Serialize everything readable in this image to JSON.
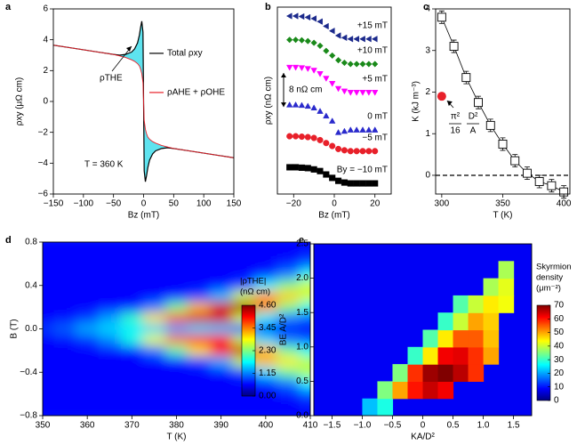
{
  "chart_data": [
    {
      "panel": "a",
      "type": "line",
      "x": [
        -150,
        -125,
        -100,
        -75,
        -50,
        -40,
        -30,
        -20,
        -15,
        -10,
        -7,
        -5,
        -3,
        -1,
        0,
        1,
        3,
        5,
        7,
        10,
        15,
        20,
        30,
        40,
        50,
        75,
        100,
        125,
        150
      ],
      "series": [
        {
          "name": "Total ρxy",
          "color": "#000000",
          "fill": "#5ee3ef",
          "values": [
            3.65,
            3.5,
            3.35,
            3.2,
            3.05,
            3.0,
            3.05,
            3.2,
            3.4,
            3.8,
            4.3,
            4.8,
            5.2,
            4.5,
            0,
            -4.5,
            -5.2,
            -4.8,
            -4.3,
            -3.8,
            -3.4,
            -3.2,
            -3.05,
            -3.0,
            -3.05,
            -3.2,
            -3.35,
            -3.5,
            -3.65
          ]
        },
        {
          "name": "ρAHE + ρOHE",
          "color": "#e8202a",
          "values": [
            3.65,
            3.5,
            3.35,
            3.2,
            3.05,
            2.95,
            2.85,
            2.7,
            2.6,
            2.45,
            2.3,
            2.1,
            1.8,
            1.2,
            0,
            -1.2,
            -1.8,
            -2.1,
            -2.3,
            -2.45,
            -2.6,
            -2.7,
            -2.85,
            -2.95,
            -3.05,
            -3.2,
            -3.35,
            -3.5,
            -3.65
          ]
        }
      ],
      "xlim": [
        -150,
        150
      ],
      "ylim": [
        -6,
        6
      ],
      "xticks": [
        {
          "value": -150,
          "label": "−150"
        },
        {
          "value": -100,
          "label": "−100"
        },
        {
          "value": -50,
          "label": "−50"
        },
        0,
        50,
        100,
        150
      ],
      "yticks": [
        {
          "value": -6,
          "label": "−6"
        },
        {
          "value": -4,
          "label": "−4"
        },
        {
          "value": -2,
          "label": "−2"
        },
        0,
        2,
        4,
        6
      ],
      "xlabel": "Bz (mT)",
      "ylabel": "ρxy (μΩ cm)",
      "legend": "center-right",
      "annotations": [
        "ρTHE",
        "T = 360 K"
      ]
    },
    {
      "panel": "b",
      "type": "line",
      "x": [
        -22,
        -19,
        -16,
        -13,
        -10,
        -7,
        -4,
        -1,
        2,
        5,
        8,
        11,
        14,
        17,
        20
      ],
      "series": [
        {
          "name": "+15 mT",
          "color": "#1c2a8c",
          "marker": "triangle-left",
          "values": [
            41.9,
            41.9,
            41.8,
            41.6,
            41.3,
            40.6,
            39.5,
            38.4,
            37.3,
            36.8,
            36.5,
            36.5,
            36.5,
            36.5,
            36.5
          ]
        },
        {
          "name": "+10 mT",
          "color": "#1a8a1a",
          "marker": "diamond",
          "values": [
            36.3,
            36.3,
            36.2,
            36.0,
            35.6,
            34.9,
            33.7,
            32.6,
            31.5,
            30.9,
            30.6,
            30.6,
            30.6,
            30.6,
            30.6
          ]
        },
        {
          "name": "+5 mT",
          "color": "#ff00ff",
          "marker": "triangle-down",
          "values": [
            29.8,
            29.8,
            29.7,
            29.5,
            29.1,
            28.3,
            27.2,
            26.0,
            24.8,
            24.2,
            23.9,
            23.9,
            23.9,
            23.9,
            23.9
          ]
        },
        {
          "name": "0 mT",
          "color": "#2a2acc",
          "marker": "triangle-up",
          "values": [
            21.0,
            21.0,
            20.9,
            20.7,
            20.3,
            19.5,
            18.4,
            17.2,
            14.5,
            14.8,
            15.1,
            15.1,
            15.1,
            15.1,
            15.1
          ]
        },
        {
          "name": "−5 mT",
          "color": "#e8202a",
          "marker": "circle",
          "values": [
            13.6,
            13.6,
            13.5,
            13.4,
            13.2,
            12.7,
            12.0,
            11.3,
            10.6,
            10.3,
            10.1,
            10.1,
            10.1,
            10.1,
            10.1
          ]
        },
        {
          "name": "By = −10 mT",
          "color": "#000000",
          "marker": "square",
          "values": [
            6.3,
            6.3,
            6.2,
            6.1,
            5.8,
            5.4,
            4.6,
            3.8,
            3.1,
            2.7,
            2.5,
            2.5,
            2.5,
            2.5,
            2.5
          ]
        }
      ],
      "xlim": [
        -28,
        28
      ],
      "ylim": [
        0,
        44
      ],
      "xticks": [
        {
          "value": -20,
          "label": "−20"
        },
        0,
        20
      ],
      "xlabel": "Bz (mT)",
      "ylabel": "ρxy (nΩ cm)",
      "scale_bar": {
        "value": 8,
        "label": "8 nΩ cm"
      }
    },
    {
      "panel": "c",
      "type": "scatter",
      "x": [
        300,
        310,
        320,
        330,
        340,
        350,
        360,
        370,
        380,
        390,
        400
      ],
      "values": [
        3.8,
        3.1,
        2.35,
        1.75,
        1.2,
        0.75,
        0.35,
        0.05,
        -0.15,
        -0.25,
        -0.4
      ],
      "errors": [
        0.15,
        0.15,
        0.15,
        0.15,
        0.15,
        0.15,
        0.15,
        0.15,
        0.15,
        0.15,
        0.15
      ],
      "color": "#000000",
      "highlight": {
        "x": 300,
        "y": 1.9,
        "color": "#e8202a"
      },
      "hline": 0,
      "xlim": [
        295,
        405
      ],
      "ylim": [
        -0.45,
        4
      ],
      "xticks": [
        300,
        350,
        400
      ],
      "yticks": [
        0,
        1,
        2,
        3,
        4
      ],
      "xlabel": "T (K)",
      "ylabel": "K (kJ m⁻³)",
      "annotation": [
        "π²",
        "16",
        "D²",
        "A"
      ]
    },
    {
      "panel": "d",
      "type": "heatmap",
      "colormap": "jet",
      "smooth": true,
      "background": "#0046ff",
      "x": [
        350,
        355,
        360,
        365,
        370,
        375,
        380,
        385,
        390,
        395,
        400,
        405,
        410
      ],
      "y": [
        0.8,
        0.7,
        0.6,
        0.5,
        0.4,
        0.3,
        0.2,
        0.1,
        0,
        -0.1,
        -0.2,
        -0.3,
        -0.4,
        -0.5,
        -0.6,
        -0.7,
        -0.8
      ],
      "z": [
        [
          0.6,
          0.6,
          0.6,
          0.6,
          0.6,
          0.6,
          0.6,
          0.6,
          0.6,
          0.6,
          0.6,
          0.6,
          0.6
        ],
        [
          0.6,
          0.6,
          0.6,
          0.6,
          0.6,
          0.6,
          0.6,
          0.6,
          0.6,
          0.6,
          0.6,
          0.6,
          0.65
        ],
        [
          0.6,
          0.6,
          0.6,
          0.6,
          0.6,
          0.6,
          0.6,
          0.6,
          0.6,
          0.6,
          0.6,
          0.7,
          0.98
        ],
        [
          0.6,
          0.6,
          0.6,
          0.6,
          0.6,
          0.6,
          0.6,
          0.6,
          0.6,
          0.6,
          0.75,
          1.15,
          1.81
        ],
        [
          0.6,
          0.6,
          0.6,
          0.6,
          0.6,
          0.6,
          0.6,
          0.6,
          0.65,
          0.86,
          1.68,
          2.32,
          2.66
        ],
        [
          0.6,
          0.6,
          0.6,
          0.6,
          0.6,
          0.6,
          0.7,
          0.86,
          1.42,
          2.7,
          3.38,
          3.1,
          2.66
        ],
        [
          0.6,
          0.6,
          0.6,
          0.62,
          0.7,
          1.15,
          2.24,
          3.18,
          4.2,
          4.5,
          3.38,
          2.32,
          1.81
        ],
        [
          0.6,
          0.65,
          0.83,
          1.29,
          1.98,
          3.0,
          3.67,
          4.2,
          4.2,
          2.7,
          1.68,
          1.15,
          0.98
        ],
        [
          0.8,
          1.0,
          1.35,
          1.54,
          1.65,
          1.52,
          1.29,
          1.5,
          1.42,
          0.86,
          0.75,
          0.68,
          0.65
        ],
        [
          0.6,
          0.65,
          0.8,
          1.2,
          1.85,
          2.8,
          3.5,
          4.0,
          4.0,
          2.6,
          1.6,
          1.1,
          0.95
        ],
        [
          0.6,
          0.6,
          0.6,
          0.62,
          0.68,
          1.1,
          2.1,
          3.0,
          4.0,
          4.3,
          3.2,
          2.2,
          1.75
        ],
        [
          0.6,
          0.6,
          0.6,
          0.6,
          0.6,
          0.6,
          0.68,
          0.82,
          1.35,
          2.6,
          3.2,
          2.95,
          2.55
        ],
        [
          0.6,
          0.6,
          0.6,
          0.6,
          0.6,
          0.6,
          0.6,
          0.6,
          0.64,
          0.82,
          1.6,
          2.2,
          2.55
        ],
        [
          0.6,
          0.6,
          0.6,
          0.6,
          0.6,
          0.6,
          0.6,
          0.6,
          0.6,
          0.6,
          0.72,
          1.1,
          1.7
        ],
        [
          0.6,
          0.6,
          0.6,
          0.6,
          0.6,
          0.6,
          0.6,
          0.6,
          0.6,
          0.6,
          0.6,
          0.68,
          0.95
        ],
        [
          0.6,
          0.6,
          0.6,
          0.6,
          0.6,
          0.6,
          0.6,
          0.6,
          0.6,
          0.6,
          0.6,
          0.6,
          0.64
        ],
        [
          0.6,
          0.6,
          0.6,
          0.6,
          0.6,
          0.6,
          0.6,
          0.6,
          0.6,
          0.6,
          0.6,
          0.6,
          0.6
        ]
      ],
      "xlim": [
        350,
        410
      ],
      "ylim": [
        -0.8,
        0.8
      ],
      "xticks": [
        350,
        360,
        370,
        380,
        390,
        400,
        410
      ],
      "yticks": [
        {
          "value": -0.8,
          "label": "−0.8"
        },
        {
          "value": -0.4,
          "label": "−0.4"
        },
        {
          "value": 0,
          "label": "0.0"
        },
        0.4,
        0.8
      ],
      "xlabel": "T (K)",
      "ylabel": "B (T)",
      "colorbar": {
        "title": [
          "|ρTHE|",
          "(nΩ cm)"
        ],
        "lim": [
          0,
          4.6
        ],
        "ticks": [
          {
            "value": 0,
            "label": "0.00"
          },
          1.15,
          {
            "value": 2.3,
            "label": "2.30"
          },
          3.45,
          {
            "value": 4.6,
            "label": "4.60"
          }
        ]
      }
    },
    {
      "panel": "e",
      "type": "heatmap",
      "colormap": "jet",
      "background": "#0000f5",
      "x": [
        -1.375,
        -1.125,
        -0.875,
        -0.625,
        -0.375,
        -0.125,
        0.125,
        0.375,
        0.625,
        0.875,
        1.125,
        1.375
      ],
      "y": [
        0.125,
        0.375,
        0.625,
        0.875,
        1.125,
        1.375,
        1.625,
        1.875,
        2.125
      ],
      "z": [
        [
          null,
          null,
          22,
          28,
          null,
          null,
          null,
          null,
          null,
          null,
          null,
          null
        ],
        [
          null,
          null,
          null,
          35,
          50,
          60,
          65,
          62,
          null,
          null,
          null,
          null
        ],
        [
          null,
          null,
          null,
          null,
          35,
          58,
          68,
          70,
          66,
          58,
          null,
          null
        ],
        [
          null,
          null,
          null,
          null,
          null,
          30,
          45,
          62,
          63,
          58,
          50,
          null
        ],
        [
          null,
          null,
          null,
          null,
          null,
          null,
          32,
          45,
          55,
          55,
          48,
          null
        ],
        [
          null,
          null,
          null,
          null,
          null,
          null,
          null,
          30,
          40,
          50,
          47,
          null
        ],
        [
          null,
          null,
          null,
          null,
          null,
          null,
          null,
          null,
          32,
          40,
          45,
          43
        ],
        [
          null,
          null,
          null,
          null,
          null,
          null,
          null,
          null,
          null,
          null,
          38,
          42
        ],
        [
          null,
          null,
          null,
          null,
          null,
          null,
          null,
          null,
          null,
          null,
          null,
          38
        ]
      ],
      "xlim": [
        -1.8,
        1.8
      ],
      "ylim": [
        0,
        2.5
      ],
      "xticks": [
        {
          "value": -1.5,
          "label": "−1.5"
        },
        {
          "value": -1,
          "label": "−1.0"
        },
        {
          "value": -0.5,
          "label": "−0.5"
        },
        0,
        0.5,
        {
          "value": 1,
          "label": "1.0"
        },
        1.5
      ],
      "yticks": [
        {
          "value": 0,
          "label": "0.0"
        },
        0.5,
        {
          "value": 1,
          "label": "1.0"
        },
        1.5,
        {
          "value": 2,
          "label": "2.0"
        },
        2.5
      ],
      "xlabel": "KA/D²",
      "ylabel": "BE A/D²",
      "colorbar": {
        "title": [
          "Skyrmion",
          "density",
          "(μm⁻²)"
        ],
        "lim": [
          0,
          70
        ],
        "ticks": [
          0,
          10,
          20,
          30,
          40,
          50,
          60,
          70
        ]
      }
    }
  ]
}
